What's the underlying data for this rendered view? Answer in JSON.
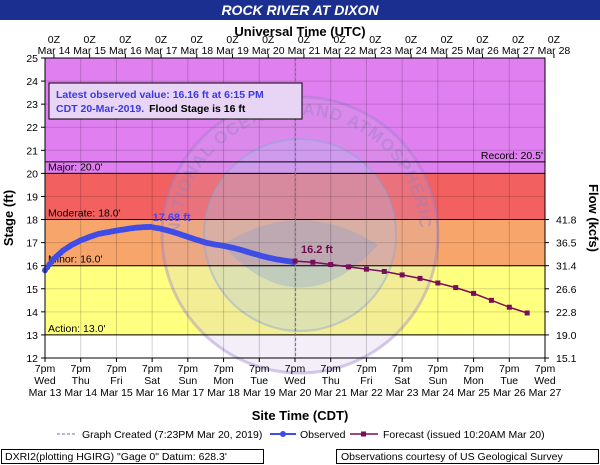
{
  "title": "ROCK RIVER AT DIXON",
  "top_axis_label": "Universal Time (UTC)",
  "bottom_axis_label": "Site Time (CDT)",
  "left_axis_label": "Stage (ft)",
  "right_axis_label": "Flow (kcfs)",
  "info_box": {
    "line1": "Latest observed value: 16.16 ft at 6:15 PM",
    "line2a": "CDT 20-Mar-2019.",
    "line2b": "Flood Stage is 16 ft"
  },
  "watermark_text": "NATIONAL OCEANIC AND ATMOSPHERIC ADMINISTRATION · U.S. DEPARTMENT OF COMMERCE · NOAA",
  "legend": {
    "graph_created": "Graph Created (7:23PM Mar 20, 2019)",
    "observed": "Observed",
    "forecast": "Forecast (issued 10:20AM Mar 20)"
  },
  "footer": {
    "left": "DXRI2(plotting HGIRG) \"Gage 0\" Datum: 628.3'",
    "right": "Observations courtesy of US Geological Survey"
  },
  "colors": {
    "title_bg": "#1a2f8f",
    "record_band": "#e07ff0",
    "major_band": "#f26060",
    "moderate_band": "#f7a56a",
    "minor_band": "#ffff80",
    "action_band": "#ffffff",
    "observed": "#3f4ce6",
    "forecast": "#7a0d5a",
    "label_observed": "#5a3fe0",
    "label_forecast": "#6a0a4a"
  },
  "chart_data": {
    "type": "line",
    "ylim": [
      12,
      25
    ],
    "y_ticks": [
      "12",
      "13",
      "14",
      "15",
      "16",
      "17",
      "18",
      "19",
      "20",
      "21",
      "22",
      "23",
      "24",
      "25"
    ],
    "x_start": "2019-03-13T19:00 CDT",
    "x_end": "2019-03-27T19:00 CDT",
    "bottom_ticks": [
      {
        "time": "7pm",
        "day": "Wed",
        "date": "Mar 13"
      },
      {
        "time": "7pm",
        "day": "Thu",
        "date": "Mar 14"
      },
      {
        "time": "7pm",
        "day": "Fri",
        "date": "Mar 15"
      },
      {
        "time": "7pm",
        "day": "Sat",
        "date": "Mar 16"
      },
      {
        "time": "7pm",
        "day": "Sun",
        "date": "Mar 17"
      },
      {
        "time": "7pm",
        "day": "Mon",
        "date": "Mar 18"
      },
      {
        "time": "7pm",
        "day": "Tue",
        "date": "Mar 19"
      },
      {
        "time": "7pm",
        "day": "Wed",
        "date": "Mar 20"
      },
      {
        "time": "7pm",
        "day": "Thu",
        "date": "Mar 21"
      },
      {
        "time": "7pm",
        "day": "Fri",
        "date": "Mar 22"
      },
      {
        "time": "7pm",
        "day": "Sat",
        "date": "Mar 23"
      },
      {
        "time": "7pm",
        "day": "Sun",
        "date": "Mar 24"
      },
      {
        "time": "7pm",
        "day": "Mon",
        "date": "Mar 25"
      },
      {
        "time": "7pm",
        "day": "Tue",
        "date": "Mar 26"
      },
      {
        "time": "7pm",
        "day": "Wed",
        "date": "Mar 27"
      }
    ],
    "top_ticks": [
      {
        "time": "0Z",
        "date": "Mar 14"
      },
      {
        "time": "0Z",
        "date": "Mar 15"
      },
      {
        "time": "0Z",
        "date": "Mar 16"
      },
      {
        "time": "0Z",
        "date": "Mar 17"
      },
      {
        "time": "0Z",
        "date": "Mar 18"
      },
      {
        "time": "0Z",
        "date": "Mar 19"
      },
      {
        "time": "0Z",
        "date": "Mar 20"
      },
      {
        "time": "0Z",
        "date": "Mar 21"
      },
      {
        "time": "0Z",
        "date": "Mar 22"
      },
      {
        "time": "0Z",
        "date": "Mar 23"
      },
      {
        "time": "0Z",
        "date": "Mar 24"
      },
      {
        "time": "0Z",
        "date": "Mar 25"
      },
      {
        "time": "0Z",
        "date": "Mar 26"
      },
      {
        "time": "0Z",
        "date": "Mar 27"
      },
      {
        "time": "0Z",
        "date": "Mar 28"
      }
    ],
    "flow_ticks": [
      {
        "stage": 18,
        "label": "41.8"
      },
      {
        "stage": 17,
        "label": "36.5"
      },
      {
        "stage": 16,
        "label": "31.4"
      },
      {
        "stage": 15,
        "label": "26.6"
      },
      {
        "stage": 14,
        "label": "22.8"
      },
      {
        "stage": 13,
        "label": "19.0"
      },
      {
        "stage": 12,
        "label": "15.1"
      }
    ],
    "flood_categories": [
      {
        "name": "Record",
        "label": "Record: 20.5'",
        "stage": 20.5
      },
      {
        "name": "Major",
        "label": "Major: 20.0'",
        "stage": 20.0
      },
      {
        "name": "Moderate",
        "label": "Moderate: 18.0'",
        "stage": 18.0
      },
      {
        "name": "Minor",
        "label": "Minor: 16.0'",
        "stage": 16.0
      },
      {
        "name": "Action",
        "label": "Action: 13.0'",
        "stage": 13.0
      }
    ],
    "graph_created": "2019-03-20T19:23 CDT",
    "observed": {
      "name": "Observed",
      "peak_label": "17.68 ft",
      "points": [
        [
          "2019-03-13T19:00",
          15.8
        ],
        [
          "2019-03-14T01:00",
          16.3
        ],
        [
          "2019-03-14T07:00",
          16.65
        ],
        [
          "2019-03-14T13:00",
          16.9
        ],
        [
          "2019-03-14T19:00",
          17.1
        ],
        [
          "2019-03-15T01:00",
          17.25
        ],
        [
          "2019-03-15T07:00",
          17.38
        ],
        [
          "2019-03-15T13:00",
          17.45
        ],
        [
          "2019-03-15T19:00",
          17.52
        ],
        [
          "2019-03-16T01:00",
          17.58
        ],
        [
          "2019-03-16T07:00",
          17.64
        ],
        [
          "2019-03-16T13:00",
          17.67
        ],
        [
          "2019-03-16T18:00",
          17.68
        ],
        [
          "2019-03-17T01:00",
          17.6
        ],
        [
          "2019-03-17T07:00",
          17.5
        ],
        [
          "2019-03-17T13:00",
          17.38
        ],
        [
          "2019-03-17T19:00",
          17.25
        ],
        [
          "2019-03-18T01:00",
          17.12
        ],
        [
          "2019-03-18T07:00",
          17.0
        ],
        [
          "2019-03-18T13:00",
          16.92
        ],
        [
          "2019-03-18T19:00",
          16.86
        ],
        [
          "2019-03-19T01:00",
          16.78
        ],
        [
          "2019-03-19T07:00",
          16.68
        ],
        [
          "2019-03-19T13:00",
          16.56
        ],
        [
          "2019-03-19T19:00",
          16.45
        ],
        [
          "2019-03-20T01:00",
          16.35
        ],
        [
          "2019-03-20T07:00",
          16.27
        ],
        [
          "2019-03-20T13:00",
          16.21
        ],
        [
          "2019-03-20T18:15",
          16.16
        ]
      ]
    },
    "forecast": {
      "name": "Forecast (issued 10:20AM Mar 20)",
      "start_label": "16.2 ft",
      "points": [
        [
          "2019-03-20T19:00",
          16.2
        ],
        [
          "2019-03-21T07:00",
          16.15
        ],
        [
          "2019-03-21T19:00",
          16.05
        ],
        [
          "2019-03-22T07:00",
          15.95
        ],
        [
          "2019-03-22T19:00",
          15.85
        ],
        [
          "2019-03-23T07:00",
          15.75
        ],
        [
          "2019-03-23T19:00",
          15.6
        ],
        [
          "2019-03-24T07:00",
          15.45
        ],
        [
          "2019-03-24T19:00",
          15.25
        ],
        [
          "2019-03-25T07:00",
          15.05
        ],
        [
          "2019-03-25T19:00",
          14.8
        ],
        [
          "2019-03-26T07:00",
          14.5
        ],
        [
          "2019-03-26T19:00",
          14.2
        ],
        [
          "2019-03-27T07:00",
          13.95
        ]
      ]
    }
  }
}
